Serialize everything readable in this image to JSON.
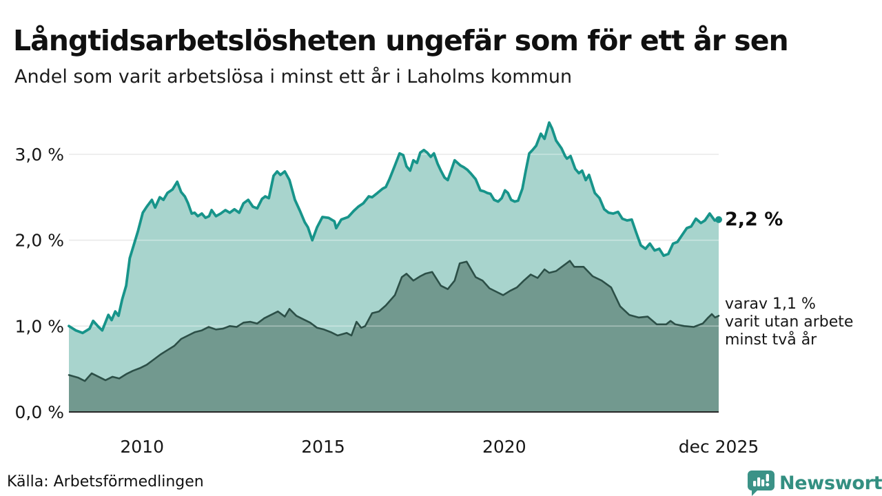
{
  "title": "Långtidsarbetslösheten ungefär som för ett år sen",
  "subtitle": "Andel som varit arbetslösa i minst ett år i Laholms kommun",
  "source": "Källa: Arbetsförmedlingen",
  "logo": {
    "text": "Newsworthy"
  },
  "annotations": {
    "latest_value": "2,2 %",
    "secondary_line1": "varav 1,1 %",
    "secondary_line2": "varit utan arbete",
    "secondary_line3": "minst två år"
  },
  "colors": {
    "accent_teal": "#17948a",
    "light_fill": "#a8d4cd",
    "dark_fill": "#72998f",
    "dark_line": "#2c4f47",
    "gridline": "#dedede",
    "axis_line": "#262626",
    "text": "#161616",
    "logo_teal": "#3b9287"
  },
  "chart_data": {
    "type": "area",
    "title": "Långtidsarbetslösheten ungefär som för ett år sen",
    "subtitle": "Andel som varit arbetslösa i minst ett år i Laholms kommun",
    "x_range": [
      2007.98,
      2025.92
    ],
    "y_range": [
      0,
      3.5
    ],
    "grid": true,
    "unit": "%",
    "yticks": [
      {
        "value": 0,
        "label": "0,0 %"
      },
      {
        "value": 1,
        "label": "1,0 %"
      },
      {
        "value": 2,
        "label": "2,0 %"
      },
      {
        "value": 3,
        "label": "3,0 %"
      }
    ],
    "xticks": [
      {
        "value": 2010,
        "label": "2010"
      },
      {
        "value": 2015,
        "label": "2015"
      },
      {
        "value": 2020,
        "label": "2020"
      },
      {
        "value": 2025.92,
        "label": "dec 2025"
      }
    ],
    "series": [
      {
        "name": "Andel arbetslösa minst ett år",
        "latest_label": "2,2 %",
        "line_color": "#17948a",
        "fill_color": "#a8d4cd",
        "line_width": 3.8,
        "end_dot": true,
        "points": [
          [
            2007.98,
            1.0
          ],
          [
            2008.17,
            0.95
          ],
          [
            2008.36,
            0.92
          ],
          [
            2008.55,
            0.97
          ],
          [
            2008.65,
            1.06
          ],
          [
            2008.8,
            0.99
          ],
          [
            2008.9,
            0.95
          ],
          [
            2009.07,
            1.13
          ],
          [
            2009.16,
            1.07
          ],
          [
            2009.26,
            1.17
          ],
          [
            2009.35,
            1.12
          ],
          [
            2009.45,
            1.31
          ],
          [
            2009.56,
            1.47
          ],
          [
            2009.66,
            1.79
          ],
          [
            2009.79,
            1.97
          ],
          [
            2009.89,
            2.11
          ],
          [
            2010.02,
            2.32
          ],
          [
            2010.13,
            2.39
          ],
          [
            2010.27,
            2.47
          ],
          [
            2010.36,
            2.38
          ],
          [
            2010.49,
            2.5
          ],
          [
            2010.59,
            2.47
          ],
          [
            2010.7,
            2.55
          ],
          [
            2010.84,
            2.59
          ],
          [
            2010.97,
            2.68
          ],
          [
            2011.08,
            2.56
          ],
          [
            2011.18,
            2.51
          ],
          [
            2011.27,
            2.43
          ],
          [
            2011.37,
            2.31
          ],
          [
            2011.45,
            2.32
          ],
          [
            2011.54,
            2.28
          ],
          [
            2011.65,
            2.31
          ],
          [
            2011.75,
            2.26
          ],
          [
            2011.85,
            2.28
          ],
          [
            2011.92,
            2.35
          ],
          [
            2012.04,
            2.28
          ],
          [
            2012.17,
            2.31
          ],
          [
            2012.3,
            2.35
          ],
          [
            2012.42,
            2.32
          ],
          [
            2012.55,
            2.36
          ],
          [
            2012.68,
            2.32
          ],
          [
            2012.8,
            2.43
          ],
          [
            2012.93,
            2.47
          ],
          [
            2013.06,
            2.39
          ],
          [
            2013.18,
            2.37
          ],
          [
            2013.31,
            2.48
          ],
          [
            2013.4,
            2.51
          ],
          [
            2013.5,
            2.49
          ],
          [
            2013.63,
            2.75
          ],
          [
            2013.73,
            2.8
          ],
          [
            2013.82,
            2.76
          ],
          [
            2013.94,
            2.8
          ],
          [
            2014.07,
            2.7
          ],
          [
            2014.22,
            2.47
          ],
          [
            2014.36,
            2.34
          ],
          [
            2014.49,
            2.21
          ],
          [
            2014.58,
            2.15
          ],
          [
            2014.7,
            2.0
          ],
          [
            2014.83,
            2.15
          ],
          [
            2014.98,
            2.27
          ],
          [
            2015.15,
            2.26
          ],
          [
            2015.31,
            2.22
          ],
          [
            2015.36,
            2.14
          ],
          [
            2015.5,
            2.24
          ],
          [
            2015.69,
            2.27
          ],
          [
            2015.84,
            2.34
          ],
          [
            2015.97,
            2.39
          ],
          [
            2016.11,
            2.43
          ],
          [
            2016.26,
            2.51
          ],
          [
            2016.35,
            2.5
          ],
          [
            2016.5,
            2.55
          ],
          [
            2016.64,
            2.6
          ],
          [
            2016.73,
            2.62
          ],
          [
            2016.83,
            2.71
          ],
          [
            2016.98,
            2.87
          ],
          [
            2017.11,
            3.01
          ],
          [
            2017.21,
            2.99
          ],
          [
            2017.3,
            2.86
          ],
          [
            2017.4,
            2.81
          ],
          [
            2017.49,
            2.93
          ],
          [
            2017.59,
            2.9
          ],
          [
            2017.68,
            3.02
          ],
          [
            2017.78,
            3.05
          ],
          [
            2017.87,
            3.02
          ],
          [
            2017.97,
            2.97
          ],
          [
            2018.06,
            3.01
          ],
          [
            2018.16,
            2.89
          ],
          [
            2018.25,
            2.81
          ],
          [
            2018.35,
            2.73
          ],
          [
            2018.44,
            2.7
          ],
          [
            2018.54,
            2.82
          ],
          [
            2018.63,
            2.93
          ],
          [
            2018.79,
            2.87
          ],
          [
            2018.88,
            2.85
          ],
          [
            2018.98,
            2.82
          ],
          [
            2019.07,
            2.78
          ],
          [
            2019.21,
            2.71
          ],
          [
            2019.34,
            2.58
          ],
          [
            2019.43,
            2.57
          ],
          [
            2019.53,
            2.55
          ],
          [
            2019.62,
            2.54
          ],
          [
            2019.72,
            2.47
          ],
          [
            2019.83,
            2.45
          ],
          [
            2019.93,
            2.49
          ],
          [
            2020.02,
            2.58
          ],
          [
            2020.1,
            2.55
          ],
          [
            2020.19,
            2.47
          ],
          [
            2020.29,
            2.45
          ],
          [
            2020.38,
            2.46
          ],
          [
            2020.5,
            2.6
          ],
          [
            2020.59,
            2.8
          ],
          [
            2020.69,
            3.01
          ],
          [
            2020.78,
            3.05
          ],
          [
            2020.88,
            3.1
          ],
          [
            2021.01,
            3.24
          ],
          [
            2021.11,
            3.18
          ],
          [
            2021.24,
            3.37
          ],
          [
            2021.32,
            3.3
          ],
          [
            2021.43,
            3.16
          ],
          [
            2021.58,
            3.07
          ],
          [
            2021.68,
            2.98
          ],
          [
            2021.73,
            2.95
          ],
          [
            2021.83,
            2.98
          ],
          [
            2021.96,
            2.83
          ],
          [
            2022.06,
            2.78
          ],
          [
            2022.15,
            2.81
          ],
          [
            2022.25,
            2.7
          ],
          [
            2022.34,
            2.76
          ],
          [
            2022.5,
            2.55
          ],
          [
            2022.63,
            2.49
          ],
          [
            2022.76,
            2.36
          ],
          [
            2022.88,
            2.32
          ],
          [
            2023.01,
            2.31
          ],
          [
            2023.14,
            2.33
          ],
          [
            2023.26,
            2.25
          ],
          [
            2023.39,
            2.23
          ],
          [
            2023.52,
            2.24
          ],
          [
            2023.64,
            2.09
          ],
          [
            2023.77,
            1.94
          ],
          [
            2023.9,
            1.9
          ],
          [
            2024.02,
            1.96
          ],
          [
            2024.15,
            1.88
          ],
          [
            2024.28,
            1.9
          ],
          [
            2024.4,
            1.82
          ],
          [
            2024.53,
            1.84
          ],
          [
            2024.66,
            1.96
          ],
          [
            2024.78,
            1.98
          ],
          [
            2024.91,
            2.06
          ],
          [
            2025.04,
            2.14
          ],
          [
            2025.16,
            2.16
          ],
          [
            2025.29,
            2.25
          ],
          [
            2025.43,
            2.2
          ],
          [
            2025.54,
            2.23
          ],
          [
            2025.67,
            2.31
          ],
          [
            2025.81,
            2.23
          ],
          [
            2025.92,
            2.24
          ]
        ]
      },
      {
        "name": "varav utan arbete minst två år",
        "latest_label": "varav 1,1 % varit utan arbete minst två år",
        "line_color": "#2c4f47",
        "fill_color": "#72998f",
        "line_width": 2.6,
        "end_dot": false,
        "points": [
          [
            2007.98,
            0.43
          ],
          [
            2008.23,
            0.4
          ],
          [
            2008.42,
            0.36
          ],
          [
            2008.61,
            0.45
          ],
          [
            2008.8,
            0.41
          ],
          [
            2008.99,
            0.37
          ],
          [
            2009.18,
            0.41
          ],
          [
            2009.37,
            0.39
          ],
          [
            2009.56,
            0.44
          ],
          [
            2009.75,
            0.48
          ],
          [
            2009.94,
            0.51
          ],
          [
            2010.13,
            0.55
          ],
          [
            2010.32,
            0.61
          ],
          [
            2010.51,
            0.67
          ],
          [
            2010.7,
            0.72
          ],
          [
            2010.89,
            0.77
          ],
          [
            2011.08,
            0.85
          ],
          [
            2011.27,
            0.89
          ],
          [
            2011.46,
            0.93
          ],
          [
            2011.65,
            0.95
          ],
          [
            2011.84,
            0.99
          ],
          [
            2012.04,
            0.96
          ],
          [
            2012.23,
            0.97
          ],
          [
            2012.42,
            1.0
          ],
          [
            2012.61,
            0.99
          ],
          [
            2012.8,
            1.04
          ],
          [
            2012.99,
            1.05
          ],
          [
            2013.18,
            1.03
          ],
          [
            2013.37,
            1.09
          ],
          [
            2013.56,
            1.13
          ],
          [
            2013.75,
            1.17
          ],
          [
            2013.94,
            1.11
          ],
          [
            2014.07,
            1.2
          ],
          [
            2014.26,
            1.12
          ],
          [
            2014.45,
            1.08
          ],
          [
            2014.64,
            1.04
          ],
          [
            2014.83,
            0.98
          ],
          [
            2015.02,
            0.96
          ],
          [
            2015.21,
            0.93
          ],
          [
            2015.4,
            0.89
          ],
          [
            2015.65,
            0.92
          ],
          [
            2015.78,
            0.89
          ],
          [
            2015.92,
            1.05
          ],
          [
            2016.05,
            0.98
          ],
          [
            2016.16,
            1.0
          ],
          [
            2016.35,
            1.15
          ],
          [
            2016.54,
            1.17
          ],
          [
            2016.73,
            1.24
          ],
          [
            2016.98,
            1.36
          ],
          [
            2017.17,
            1.57
          ],
          [
            2017.3,
            1.61
          ],
          [
            2017.49,
            1.53
          ],
          [
            2017.68,
            1.58
          ],
          [
            2017.82,
            1.61
          ],
          [
            2018.01,
            1.63
          ],
          [
            2018.25,
            1.47
          ],
          [
            2018.44,
            1.43
          ],
          [
            2018.63,
            1.53
          ],
          [
            2018.77,
            1.73
          ],
          [
            2018.96,
            1.75
          ],
          [
            2019.21,
            1.57
          ],
          [
            2019.4,
            1.53
          ],
          [
            2019.59,
            1.44
          ],
          [
            2019.78,
            1.4
          ],
          [
            2019.97,
            1.36
          ],
          [
            2020.16,
            1.41
          ],
          [
            2020.35,
            1.45
          ],
          [
            2020.54,
            1.53
          ],
          [
            2020.73,
            1.6
          ],
          [
            2020.92,
            1.56
          ],
          [
            2021.11,
            1.66
          ],
          [
            2021.24,
            1.62
          ],
          [
            2021.43,
            1.64
          ],
          [
            2021.62,
            1.7
          ],
          [
            2021.81,
            1.76
          ],
          [
            2021.93,
            1.69
          ],
          [
            2022.19,
            1.69
          ],
          [
            2022.44,
            1.58
          ],
          [
            2022.69,
            1.53
          ],
          [
            2022.95,
            1.45
          ],
          [
            2023.2,
            1.23
          ],
          [
            2023.45,
            1.13
          ],
          [
            2023.71,
            1.1
          ],
          [
            2023.96,
            1.11
          ],
          [
            2024.21,
            1.02
          ],
          [
            2024.47,
            1.02
          ],
          [
            2024.59,
            1.06
          ],
          [
            2024.72,
            1.02
          ],
          [
            2024.97,
            1.0
          ],
          [
            2025.23,
            0.99
          ],
          [
            2025.48,
            1.03
          ],
          [
            2025.61,
            1.09
          ],
          [
            2025.73,
            1.14
          ],
          [
            2025.82,
            1.1
          ],
          [
            2025.92,
            1.12
          ]
        ]
      }
    ]
  }
}
